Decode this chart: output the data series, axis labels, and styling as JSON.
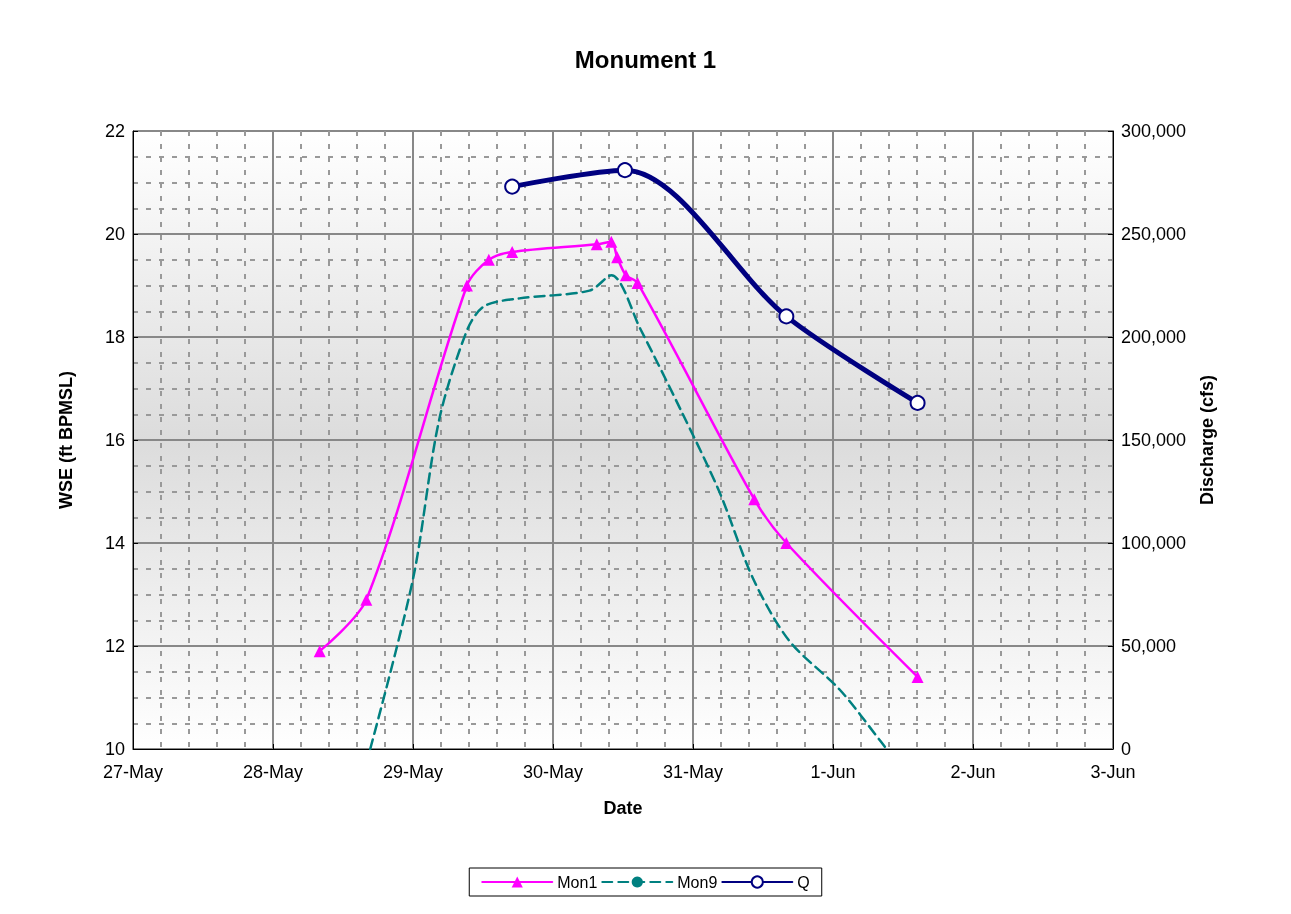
{
  "chart_data": {
    "type": "line",
    "title": "Monument 1",
    "xlabel": "Date",
    "ylabel": "WSE (ft BPMSL)",
    "y2label": "Discharge (cfs)",
    "xlim": [
      "--05-27",
      "--06-03"
    ],
    "xticks": [
      {
        "value": "--05-27",
        "label": "27-May"
      },
      {
        "value": "--05-28",
        "label": "28-May"
      },
      {
        "value": "--05-29",
        "label": "29-May"
      },
      {
        "value": "--05-30",
        "label": "30-May"
      },
      {
        "value": "--05-31",
        "label": "31-May"
      },
      {
        "value": "--06-01",
        "label": "1-Jun"
      },
      {
        "value": "--06-02",
        "label": "2-Jun"
      },
      {
        "value": "--06-03",
        "label": "3-Jun"
      }
    ],
    "ylim": [
      10,
      22
    ],
    "yticks": [
      10,
      12,
      14,
      16,
      18,
      20,
      22
    ],
    "y2lim": [
      0,
      300000
    ],
    "y2ticks": [
      0,
      {
        "value": 50000,
        "label": "50,000"
      },
      {
        "value": 100000,
        "label": "100,000"
      },
      {
        "value": 150000,
        "label": "150,000"
      },
      {
        "value": 200000,
        "label": "200,000"
      },
      {
        "value": 250000,
        "label": "250,000"
      },
      {
        "value": 300000,
        "label": "300,000"
      }
    ],
    "grid": true,
    "legend": "bottom",
    "series": [
      {
        "name": "Mon1",
        "color": "#ff00ff",
        "marker": "triangle",
        "line_style": "solid",
        "x": [
          "--05-28T08:00",
          "--05-28T16:00",
          "--05-29T09:15",
          "--05-29T13:00",
          "--05-29T17:00",
          "--05-30T07:30",
          "--05-30T10:00",
          "--05-30T11:00",
          "--05-30T12:30",
          "--05-30T14:30",
          "--05-31T10:30",
          "--05-31T16:00",
          "--06-01T14:30"
        ],
        "values": [
          11.9,
          12.9,
          19.0,
          19.5,
          19.65,
          19.8,
          19.85,
          19.55,
          19.2,
          19.05,
          14.85,
          14.0,
          11.4
        ]
      },
      {
        "name": "Mon9",
        "color": "#008080",
        "marker": "none",
        "line_style": "dashed",
        "x": [
          "--05-28T16:40",
          "--05-29T00:00",
          "--05-29T04:30",
          "--05-29T09:20",
          "--05-29T12:15",
          "--05-29T18:15",
          "--05-30T06:15",
          "--05-30T10:00",
          "--05-30T15:00",
          "--05-30T21:50",
          "--05-31T04:30",
          "--05-31T10:20",
          "--05-31T16:30",
          "--06-01T01:10",
          "--06-01T08:10",
          "--06-01T09:10"
        ],
        "values": [
          10.0,
          13.3,
          16.4,
          18.15,
          18.6,
          18.75,
          18.9,
          19.2,
          18.15,
          16.6,
          15.0,
          13.3,
          12.1,
          11.15,
          10.15,
          10.0
        ]
      },
      {
        "name": "Q",
        "color": "#000080",
        "marker": "circle",
        "line_style": "solid",
        "axis": "y2",
        "x": [
          "--05-29T17:00",
          "--05-30T12:20",
          "--05-31T16:00",
          "--06-01T14:30"
        ],
        "values": [
          273000,
          281000,
          210000,
          168000
        ]
      }
    ]
  }
}
